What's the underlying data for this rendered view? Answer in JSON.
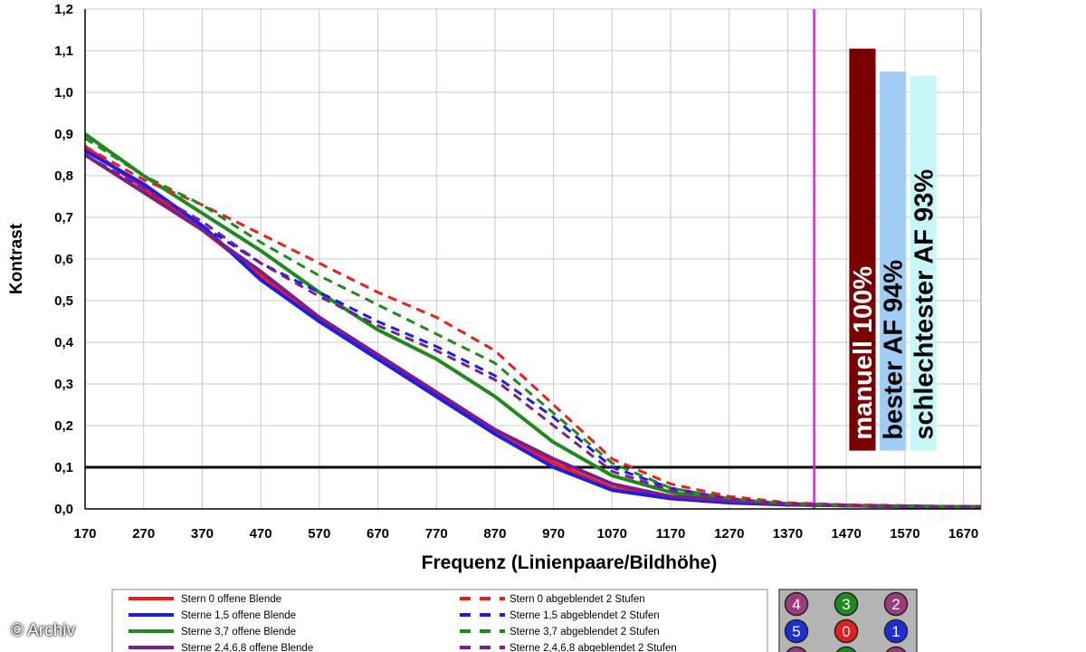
{
  "chart_data": {
    "type": "line",
    "title": "",
    "xlabel": "Frequenz (Linienpaare/Bildhöhe)",
    "ylabel": "Kontrast",
    "xlim": [
      170,
      1700
    ],
    "ylim": [
      0,
      1.2
    ],
    "xticks": [
      "170",
      "270",
      "370",
      "470",
      "570",
      "670",
      "770",
      "870",
      "970",
      "1070",
      "1170",
      "1270",
      "1370",
      "1470",
      "1570",
      "1670"
    ],
    "yticks": [
      "0,0",
      "0,1",
      "0,2",
      "0,3",
      "0,4",
      "0,5",
      "0,6",
      "0,7",
      "0,8",
      "0,9",
      "1,0",
      "1,1",
      "1,2"
    ],
    "grid": true,
    "reference_line": {
      "y": 0.1,
      "color": "#000000"
    },
    "marker_line": {
      "x": 1415,
      "color": "#cc33cc"
    },
    "series": [
      {
        "name": "Stern 0 offene Blende",
        "color": "#ee1c1c",
        "dash": false,
        "x": [
          170,
          270,
          370,
          470,
          570,
          670,
          770,
          870,
          970,
          1070,
          1170,
          1270,
          1370,
          1470,
          1570,
          1670,
          1700
        ],
        "y": [
          0.87,
          0.77,
          0.67,
          0.56,
          0.45,
          0.37,
          0.28,
          0.19,
          0.11,
          0.05,
          0.03,
          0.02,
          0.01,
          0.008,
          0.006,
          0.005,
          0.005
        ]
      },
      {
        "name": "Sterne 1,5 offene Blende",
        "color": "#1c1cee",
        "dash": false,
        "x": [
          170,
          270,
          370,
          470,
          570,
          670,
          770,
          870,
          970,
          1070,
          1170,
          1270,
          1370,
          1470,
          1570,
          1670,
          1700
        ],
        "y": [
          0.86,
          0.78,
          0.68,
          0.55,
          0.45,
          0.36,
          0.27,
          0.18,
          0.1,
          0.045,
          0.025,
          0.015,
          0.01,
          0.008,
          0.006,
          0.005,
          0.005
        ]
      },
      {
        "name": "Sterne 3,7 offene Blende",
        "color": "#1e8a1e",
        "dash": false,
        "x": [
          170,
          270,
          370,
          470,
          570,
          670,
          770,
          870,
          970,
          1070,
          1170,
          1270,
          1370,
          1470,
          1570,
          1670,
          1700
        ],
        "y": [
          0.9,
          0.8,
          0.71,
          0.62,
          0.52,
          0.43,
          0.36,
          0.27,
          0.16,
          0.08,
          0.04,
          0.02,
          0.012,
          0.008,
          0.006,
          0.005,
          0.005
        ]
      },
      {
        "name": "Sterne 2,4,6,8 offene Blende",
        "color": "#7a1e8a",
        "dash": false,
        "x": [
          170,
          270,
          370,
          470,
          570,
          670,
          770,
          870,
          970,
          1070,
          1170,
          1270,
          1370,
          1470,
          1570,
          1670,
          1700
        ],
        "y": [
          0.85,
          0.76,
          0.67,
          0.57,
          0.46,
          0.37,
          0.28,
          0.19,
          0.12,
          0.06,
          0.03,
          0.02,
          0.012,
          0.008,
          0.006,
          0.005,
          0.005
        ]
      },
      {
        "name": "Stern 0 abgeblendet 2 Stufen",
        "color": "#ee1c1c",
        "dash": true,
        "x": [
          170,
          270,
          370,
          470,
          570,
          670,
          770,
          870,
          970,
          1070,
          1170,
          1270,
          1370,
          1470,
          1570,
          1670,
          1700
        ],
        "y": [
          0.87,
          0.79,
          0.73,
          0.66,
          0.59,
          0.52,
          0.46,
          0.38,
          0.25,
          0.12,
          0.06,
          0.03,
          0.015,
          0.01,
          0.008,
          0.006,
          0.006
        ]
      },
      {
        "name": "Sterne 1,5 abgeblendet 2 Stufen",
        "color": "#1c1cee",
        "dash": true,
        "x": [
          170,
          270,
          370,
          470,
          570,
          670,
          770,
          870,
          970,
          1070,
          1170,
          1270,
          1370,
          1470,
          1570,
          1670,
          1700
        ],
        "y": [
          0.86,
          0.78,
          0.68,
          0.59,
          0.52,
          0.45,
          0.39,
          0.32,
          0.22,
          0.1,
          0.05,
          0.025,
          0.012,
          0.008,
          0.006,
          0.005,
          0.005
        ]
      },
      {
        "name": "Sterne 3,7 abgeblendet 2 Stufen",
        "color": "#1e8a1e",
        "dash": true,
        "x": [
          170,
          270,
          370,
          470,
          570,
          670,
          770,
          870,
          970,
          1070,
          1170,
          1270,
          1370,
          1470,
          1570,
          1670,
          1700
        ],
        "y": [
          0.89,
          0.8,
          0.73,
          0.64,
          0.56,
          0.49,
          0.42,
          0.35,
          0.23,
          0.11,
          0.05,
          0.025,
          0.012,
          0.008,
          0.006,
          0.005,
          0.005
        ]
      },
      {
        "name": "Sterne 2,4,6,8 abgeblendet 2 Stufen",
        "color": "#7a1e8a",
        "dash": true,
        "x": [
          170,
          270,
          370,
          470,
          570,
          670,
          770,
          870,
          970,
          1070,
          1170,
          1270,
          1370,
          1470,
          1570,
          1670,
          1700
        ],
        "y": [
          0.85,
          0.77,
          0.69,
          0.59,
          0.51,
          0.44,
          0.38,
          0.31,
          0.2,
          0.09,
          0.045,
          0.025,
          0.012,
          0.008,
          0.006,
          0.005,
          0.005
        ]
      }
    ],
    "bars": [
      {
        "label": "manuell 100%",
        "value": 1.105,
        "x_from": 1475,
        "x_to": 1520,
        "color": "#7a0000",
        "text_color": "#ffffff"
      },
      {
        "label": "bester AF 94%",
        "value": 1.05,
        "x_from": 1527,
        "x_to": 1572,
        "color": "#9fcdf5",
        "text_color": "#000000"
      },
      {
        "label": "schlechtester AF 93%",
        "value": 1.04,
        "x_from": 1579,
        "x_to": 1624,
        "color": "#c8f7f7",
        "text_color": "#000000"
      }
    ],
    "legend_position": "bottom",
    "star_grid": {
      "numbers": [
        "4",
        "3",
        "2",
        "5",
        "0",
        "1"
      ],
      "colors": [
        "#9b3b7a",
        "#1e8a1e",
        "#9b3b7a",
        "#1c2fd6",
        "#e81c1c",
        "#1c2fd6"
      ]
    }
  },
  "watermark": "© Archiv"
}
